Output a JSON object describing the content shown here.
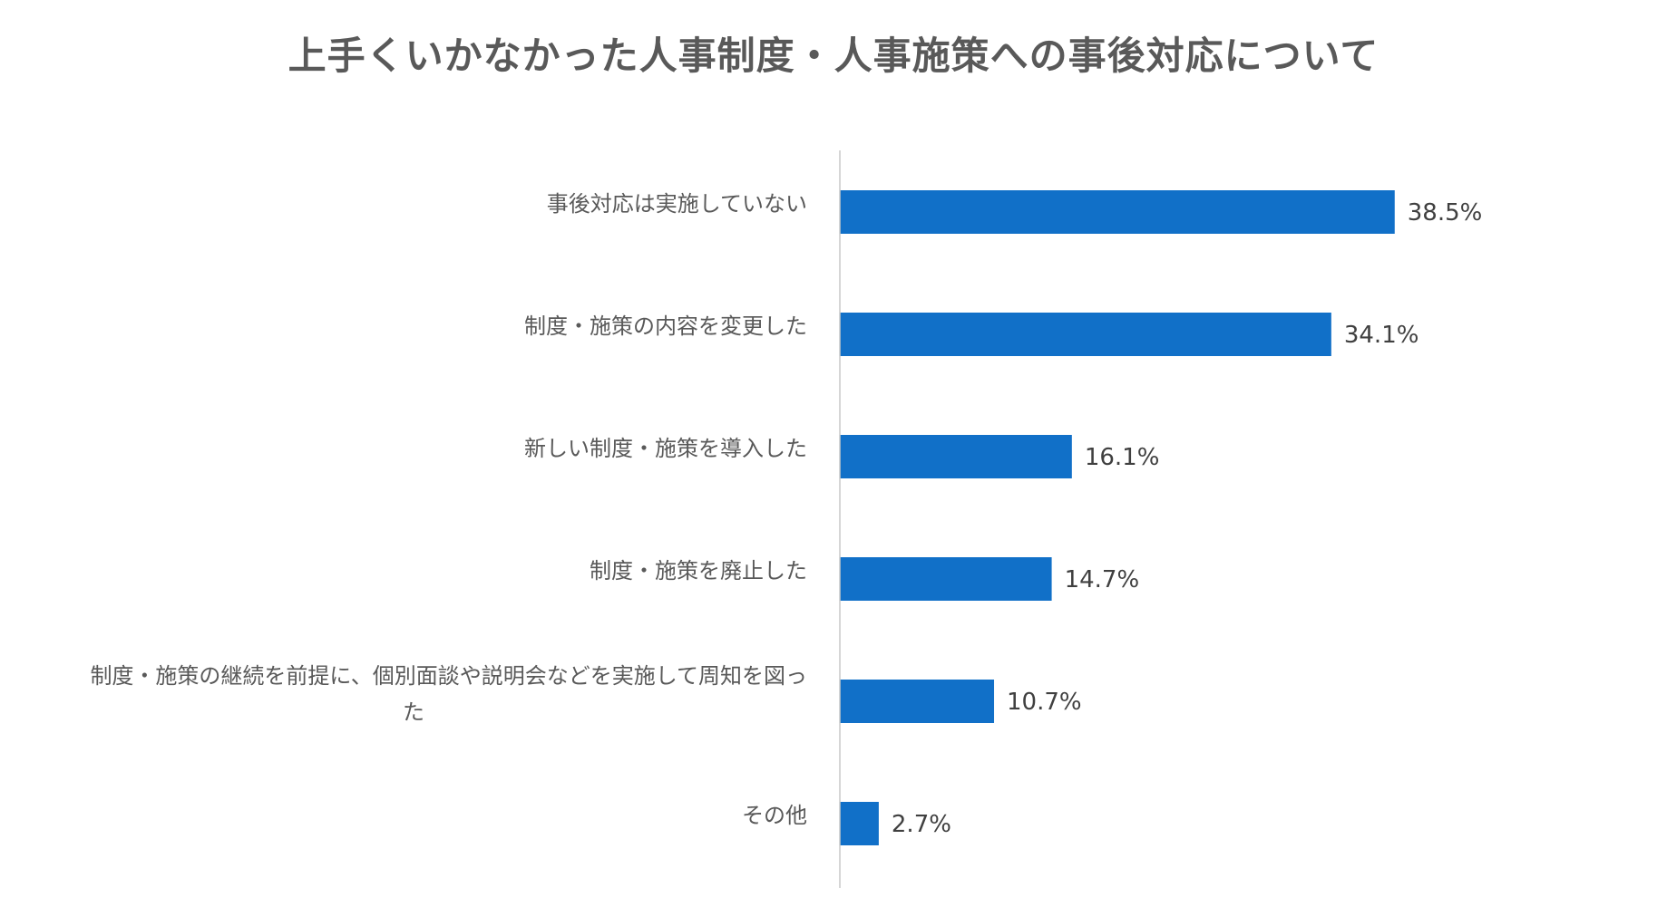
{
  "chart_data": {
    "type": "bar",
    "orientation": "horizontal",
    "title": "上手くいかなかった人事制度・人事施策への事後対応について",
    "categories": [
      "事後対応は実施していない",
      "制度・施策の内容を変更した",
      "新しい制度・施策を導入した",
      "制度・施策を廃止した",
      "制度・施策の継続を前提に、個別面談や説明会などを実施して周知を図った",
      "その他"
    ],
    "category_display_lines": [
      [
        "事後対応は実施していない"
      ],
      [
        "制度・施策の内容を変更した"
      ],
      [
        "新しい制度・施策を導入した"
      ],
      [
        "制度・施策を廃止した"
      ],
      [
        "制度・施策の継続を前提に、個別面談や説明会などを実施して周知を図っ",
        "た"
      ],
      [
        "その他"
      ]
    ],
    "values": [
      38.5,
      34.1,
      16.1,
      14.7,
      10.7,
      2.7
    ],
    "value_labels": [
      "38.5%",
      "34.1%",
      "16.1%",
      "14.7%",
      "10.7%",
      "2.7%"
    ],
    "unit": "%",
    "xlim": [
      0,
      50
    ],
    "grid": false,
    "legend": "none",
    "bar_color": "#1170C8",
    "axis_color": "#C8C8C8"
  }
}
